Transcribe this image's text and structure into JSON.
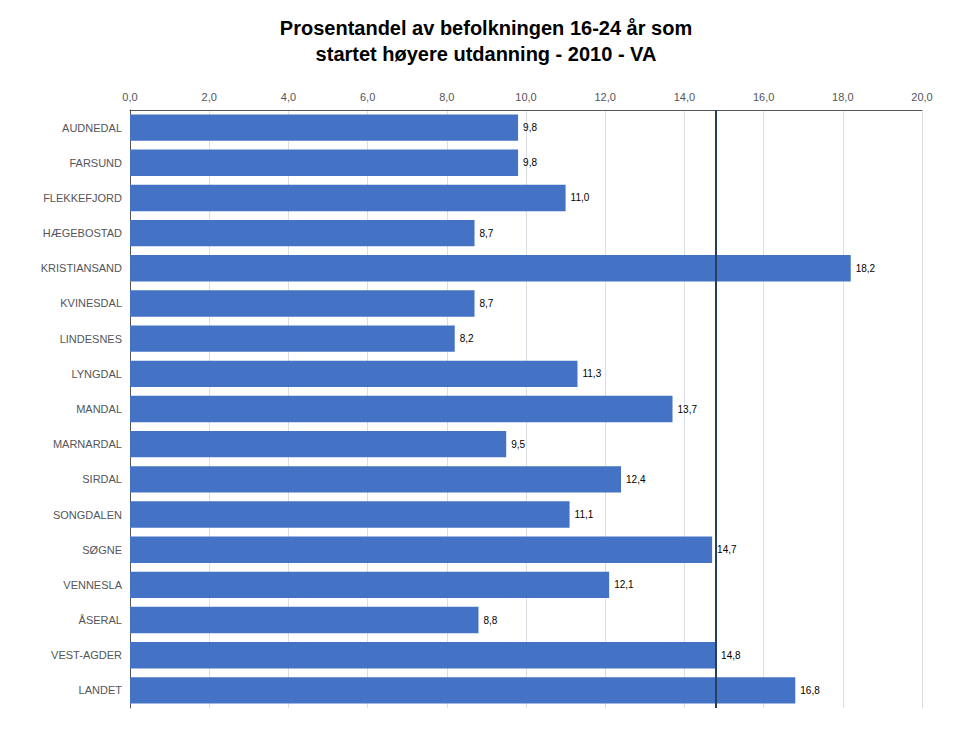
{
  "chart_data": {
    "type": "bar",
    "orientation": "horizontal",
    "title": "Prosentandel av befolkningen 16-24 år som\nstartet høyere utdanning - 2010 - VA",
    "categories": [
      "AUDNEDAL",
      "FARSUND",
      "FLEKKEFJORD",
      "HÆGEBOSTAD",
      "KRISTIANSAND",
      "KVINESDAL",
      "LINDESNES",
      "LYNGDAL",
      "MANDAL",
      "MARNARDAL",
      "SIRDAL",
      "SONGDALEN",
      "SØGNE",
      "VENNESLA",
      "ÅSERAL",
      "VEST-AGDER",
      "LANDET"
    ],
    "values": [
      9.8,
      9.8,
      11.0,
      8.7,
      18.2,
      8.7,
      8.2,
      11.3,
      13.7,
      9.5,
      12.4,
      11.1,
      14.7,
      12.1,
      8.8,
      14.8,
      16.8
    ],
    "value_labels": [
      "9,8",
      "9,8",
      "11,0",
      "8,7",
      "18,2",
      "8,7",
      "8,2",
      "11,3",
      "13,7",
      "9,5",
      "12,4",
      "11,1",
      "14,7",
      "12,1",
      "8,8",
      "14,8",
      "16,8"
    ],
    "data_labels": true,
    "color": "#4472C4",
    "xlim": [
      0,
      20.0
    ],
    "xticks": [
      {
        "value": 0.0,
        "label": "0,0"
      },
      {
        "value": 2.0,
        "label": "2,0"
      },
      {
        "value": 4.0,
        "label": "4,0"
      },
      {
        "value": 6.0,
        "label": "6,0"
      },
      {
        "value": 8.0,
        "label": "8,0"
      },
      {
        "value": 10.0,
        "label": "10,0"
      },
      {
        "value": 12.0,
        "label": "12,0"
      },
      {
        "value": 14.0,
        "label": "14,0"
      },
      {
        "value": 16.0,
        "label": "16,0"
      },
      {
        "value": 18.0,
        "label": "18,0"
      },
      {
        "value": 20.0,
        "label": "20,0"
      }
    ],
    "grid": true,
    "reference_line": {
      "value": 14.8,
      "color": "#243F60"
    }
  }
}
